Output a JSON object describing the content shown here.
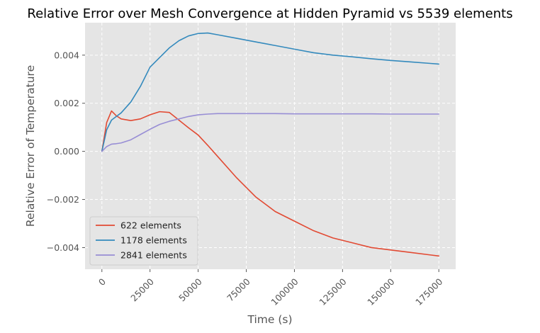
{
  "chart_data": {
    "type": "line",
    "title": "Relative Error over Mesh Convergence at Hidden Pyramid vs 5539 elements",
    "xlabel": "Time (s)",
    "ylabel": "Relative Error of Temperature",
    "xlim": [
      -8750,
      183750
    ],
    "ylim": [
      -0.0049,
      0.00535
    ],
    "xticks": [
      0,
      25000,
      50000,
      75000,
      100000,
      125000,
      150000,
      175000
    ],
    "xtick_labels": [
      "0",
      "25000",
      "50000",
      "75000",
      "100000",
      "125000",
      "150000",
      "175000"
    ],
    "yticks": [
      -0.004,
      -0.002,
      0.0,
      0.002,
      0.004
    ],
    "ytick_labels": [
      "−0.004",
      "−0.002",
      "0.000",
      "0.002",
      "0.004"
    ],
    "grid": true,
    "legend_position": "lower-left",
    "x": [
      0,
      2500,
      5000,
      7500,
      10000,
      15000,
      20000,
      25000,
      30000,
      35000,
      40000,
      45000,
      50000,
      55000,
      60000,
      70000,
      80000,
      90000,
      100000,
      110000,
      120000,
      130000,
      140000,
      150000,
      160000,
      170000,
      175000
    ],
    "series": [
      {
        "name": "622 elements",
        "color": "#E24A33",
        "values": [
          0.0,
          0.0012,
          0.00168,
          0.00148,
          0.00135,
          0.00128,
          0.00135,
          0.00152,
          0.00165,
          0.00162,
          0.0013,
          0.00098,
          0.00068,
          0.00025,
          -0.0002,
          -0.0011,
          -0.0019,
          -0.0025,
          -0.0029,
          -0.0033,
          -0.0036,
          -0.0038,
          -0.004,
          -0.0041,
          -0.0042,
          -0.0043,
          -0.00435
        ]
      },
      {
        "name": "1178 elements",
        "color": "#348ABD",
        "values": [
          0.0,
          0.0009,
          0.0013,
          0.00145,
          0.0016,
          0.00205,
          0.0027,
          0.0035,
          0.0039,
          0.0043,
          0.0046,
          0.0048,
          0.0049,
          0.00492,
          0.00485,
          0.0047,
          0.00455,
          0.0044,
          0.00425,
          0.0041,
          0.004,
          0.00393,
          0.00385,
          0.00378,
          0.00372,
          0.00366,
          0.00363
        ]
      },
      {
        "name": "2841 elements",
        "color": "#988ED5",
        "values": [
          0.0,
          0.0002,
          0.0003,
          0.00032,
          0.00035,
          0.00048,
          0.0007,
          0.00092,
          0.00112,
          0.00125,
          0.00135,
          0.00145,
          0.00152,
          0.00155,
          0.00157,
          0.00157,
          0.00157,
          0.00157,
          0.00156,
          0.00156,
          0.00156,
          0.00156,
          0.00156,
          0.00155,
          0.00155,
          0.00155,
          0.00155
        ]
      }
    ]
  }
}
